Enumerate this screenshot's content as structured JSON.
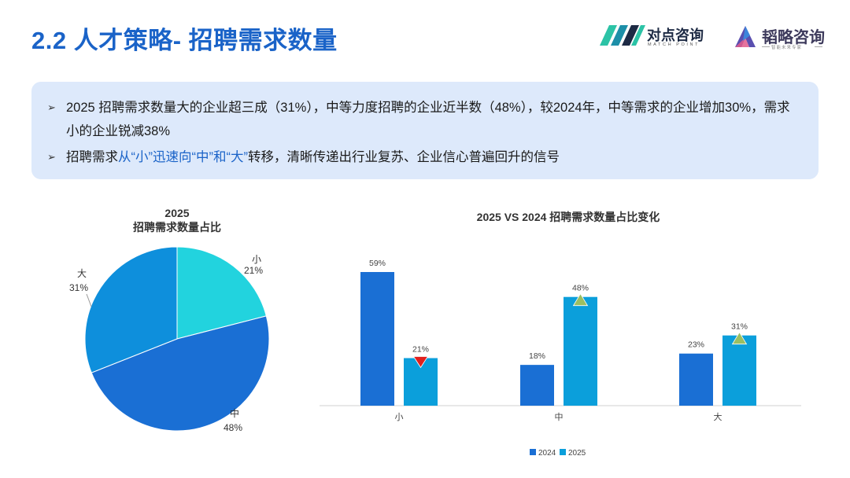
{
  "page": {
    "title": "2.2 人才策略- 招聘需求数量"
  },
  "logos": {
    "primary_name": "对点咨询",
    "primary_sub": "MATCH POINT",
    "secondary_name": "韬略咨询",
    "secondary_sub": "智能未来专家"
  },
  "summary": {
    "bullet1": "2025 招聘需求数量大的企业超三成（31%），中等力度招聘的企业近半数（48%），较2024年，中等需求的企业增加30%，需求小的企业锐减38%",
    "bullet2_pre": "招聘需求",
    "bullet2_hl": "从“小”迅速向“中”和“大”",
    "bullet2_post": "转移，清晰传递出行业复苏、企业信心普遍回升的信号"
  },
  "chart_data": [
    {
      "type": "pie",
      "title": "2025\n招聘需求数量占比",
      "title_line1": "2025",
      "title_line2": "招聘需求数量占比",
      "slices": [
        {
          "label": "小",
          "value": 21,
          "display": "21%",
          "color": "#22d3de"
        },
        {
          "label": "中",
          "value": 48,
          "display": "48%",
          "color": "#1a6fd4"
        },
        {
          "label": "大",
          "value": 31,
          "display": "31%",
          "color": "#0e8fdc"
        }
      ]
    },
    {
      "type": "bar",
      "title": "2025 VS 2024 招聘需求数量占比变化",
      "categories": [
        "小",
        "中",
        "大"
      ],
      "series": [
        {
          "name": "2024",
          "values": [
            59,
            18,
            23
          ],
          "display": [
            "59%",
            "18%",
            "23%"
          ],
          "color": "#1a6fd4"
        },
        {
          "name": "2025",
          "values": [
            21,
            48,
            31
          ],
          "display": [
            "21%",
            "48%",
            "31%"
          ],
          "color": "#0b9fdb"
        }
      ],
      "trend_markers": [
        "down",
        "up",
        "up"
      ],
      "trend_colors": {
        "down": "#e0201e",
        "up": "#9bbf62"
      },
      "ylim": [
        0,
        59
      ],
      "legend_position": "bottom"
    }
  ]
}
